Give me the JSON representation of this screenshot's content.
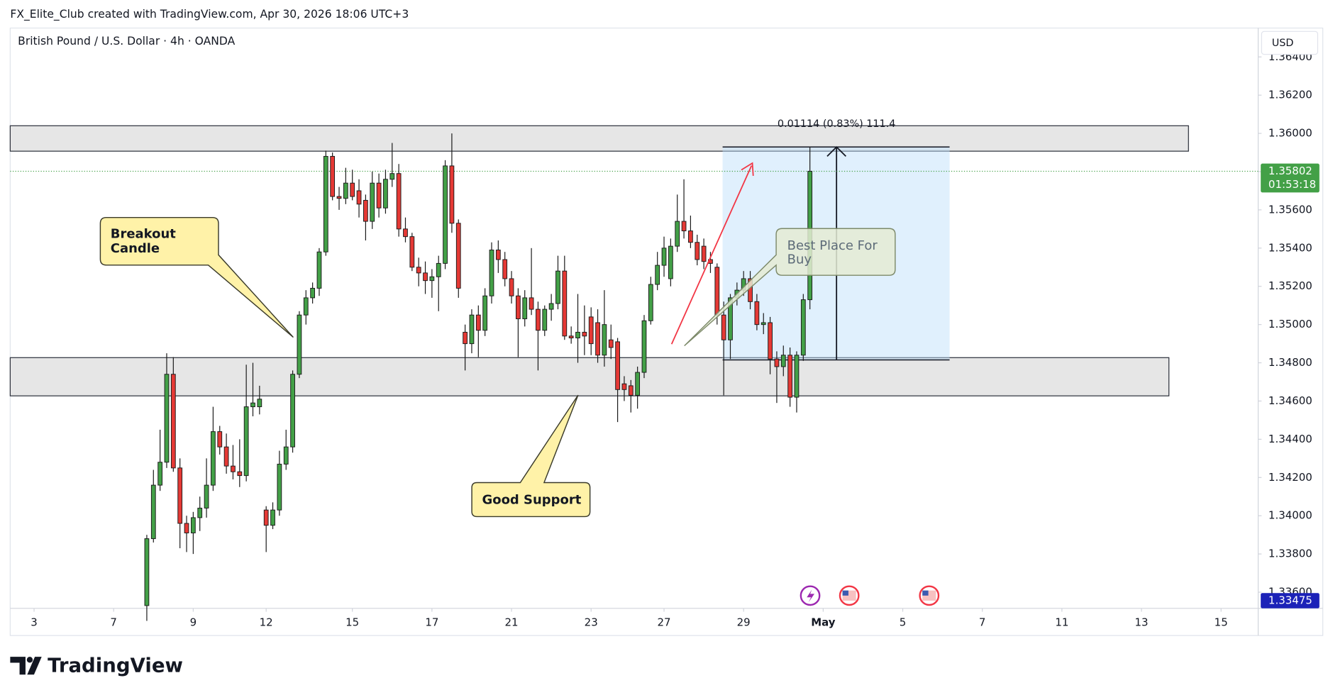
{
  "header": {
    "credit": "FX_Elite_Club created with TradingView.com, Apr 30, 2026 18:06 UTC+3",
    "symbol": "British Pound / U.S. Dollar · 4h · OANDA",
    "currency": "USD"
  },
  "chart_data": {
    "type": "candlestick",
    "x": [
      17,
      18,
      19,
      20,
      21,
      22,
      23,
      24,
      25,
      26,
      27,
      28,
      29,
      30,
      31,
      32,
      33,
      34,
      35,
      36,
      37,
      38,
      39,
      40,
      41,
      42,
      43,
      44,
      45,
      46,
      47,
      48,
      49,
      50,
      51,
      52,
      53,
      54,
      55,
      56,
      57,
      58,
      59,
      60,
      61,
      62,
      63,
      64,
      65,
      66,
      67,
      68,
      69,
      70,
      71,
      72,
      73,
      74,
      75,
      76,
      77,
      78,
      79,
      80,
      81,
      82,
      83,
      84,
      85,
      86,
      87,
      88,
      89,
      90,
      91,
      92,
      93,
      94,
      95,
      96,
      97,
      98,
      99,
      100,
      101,
      102,
      103,
      104,
      105,
      106,
      107,
      108,
      109,
      110,
      111,
      112,
      113,
      114,
      115,
      116,
      117
    ],
    "open": [
      1.3353,
      1.3388,
      1.3416,
      1.3428,
      1.3474,
      1.3425,
      1.3396,
      1.3391,
      1.3399,
      1.3404,
      1.3416,
      1.3444,
      1.3436,
      1.3426,
      1.3423,
      1.3421,
      1.3457,
      1.3457,
      1.3403,
      1.3395,
      1.3403,
      1.3427,
      1.3436,
      1.3474,
      1.3505,
      1.3514,
      1.3519,
      1.3538,
      1.3588,
      1.3567,
      1.3566,
      1.3574,
      1.357,
      1.3565,
      1.3554,
      1.3574,
      1.3561,
      1.3576,
      1.3579,
      1.355,
      1.3546,
      1.353,
      1.3527,
      1.3523,
      1.3525,
      1.3532,
      1.3583,
      1.3553,
      1.3496,
      1.349,
      1.3505,
      1.3497,
      1.3515,
      1.3539,
      1.3534,
      1.3524,
      1.3515,
      1.3503,
      1.3514,
      1.3508,
      1.3497,
      1.3508,
      1.3511,
      1.3528,
      1.3494,
      1.3493,
      1.3496,
      1.3504,
      1.3501,
      1.3484,
      1.3492,
      1.3491,
      1.3469,
      1.3468,
      1.3463,
      1.3475,
      1.3502,
      1.3521,
      1.3531,
      1.3524,
      1.3541,
      1.3554,
      1.3549,
      1.3543,
      1.3541,
      1.3534,
      1.353,
      1.3505,
      1.3492,
      1.3514,
      1.3518,
      1.3524,
      1.3512,
      1.35,
      1.3501,
      1.3482,
      1.3478,
      1.3484,
      1.3462,
      1.3484,
      1.3513
    ],
    "high": [
      1.339,
      1.3424,
      1.3445,
      1.3485,
      1.3483,
      1.343,
      1.34,
      1.3402,
      1.341,
      1.343,
      1.3457,
      1.3447,
      1.3443,
      1.3437,
      1.344,
      1.3479,
      1.348,
      1.3468,
      1.3405,
      1.3407,
      1.3434,
      1.3445,
      1.3476,
      1.3507,
      1.3518,
      1.3522,
      1.354,
      1.3591,
      1.359,
      1.3572,
      1.3582,
      1.3581,
      1.3576,
      1.3568,
      1.358,
      1.3579,
      1.3581,
      1.3595,
      1.3584,
      1.3556,
      1.3548,
      1.3535,
      1.3533,
      1.3529,
      1.3536,
      1.3586,
      1.36,
      1.3555,
      1.35,
      1.3508,
      1.351,
      1.3519,
      1.3543,
      1.3544,
      1.3538,
      1.3528,
      1.3519,
      1.3518,
      1.354,
      1.3512,
      1.351,
      1.3516,
      1.3536,
      1.3536,
      1.3499,
      1.3516,
      1.351,
      1.3509,
      1.3508,
      1.3518,
      1.35,
      1.3493,
      1.3473,
      1.3471,
      1.3478,
      1.3505,
      1.3525,
      1.3538,
      1.3546,
      1.3545,
      1.3568,
      1.3576,
      1.3557,
      1.3547,
      1.3545,
      1.3538,
      1.3532,
      1.3512,
      1.3516,
      1.3522,
      1.3528,
      1.3528,
      1.3516,
      1.3506,
      1.3504,
      1.3486,
      1.3489,
      1.3488,
      1.3486,
      1.3516,
      1.3593
    ],
    "low": [
      1.3345,
      1.3386,
      1.3413,
      1.3425,
      1.3423,
      1.3383,
      1.3381,
      1.338,
      1.3392,
      1.3399,
      1.3413,
      1.3432,
      1.3422,
      1.3419,
      1.3415,
      1.3418,
      1.3452,
      1.3453,
      1.3381,
      1.3393,
      1.34,
      1.3424,
      1.3433,
      1.3472,
      1.35,
      1.3511,
      1.3515,
      1.3536,
      1.3565,
      1.356,
      1.3563,
      1.3565,
      1.3556,
      1.3544,
      1.355,
      1.3556,
      1.3558,
      1.3572,
      1.3546,
      1.3543,
      1.3528,
      1.352,
      1.3516,
      1.3514,
      1.3507,
      1.3529,
      1.3548,
      1.3514,
      1.3476,
      1.3485,
      1.3483,
      1.3494,
      1.3511,
      1.3527,
      1.352,
      1.3511,
      1.3483,
      1.3499,
      1.3505,
      1.3476,
      1.3494,
      1.3502,
      1.3508,
      1.3492,
      1.349,
      1.348,
      1.3484,
      1.3484,
      1.348,
      1.3478,
      1.3482,
      1.3449,
      1.346,
      1.3454,
      1.3456,
      1.3472,
      1.35,
      1.3518,
      1.3525,
      1.352,
      1.3538,
      1.3545,
      1.354,
      1.3531,
      1.3529,
      1.3527,
      1.35,
      1.3463,
      1.3482,
      1.351,
      1.3515,
      1.3508,
      1.3497,
      1.3495,
      1.3474,
      1.3459,
      1.3473,
      1.3457,
      1.3454,
      1.3481,
      1.3508
    ],
    "close": [
      1.3388,
      1.3416,
      1.3428,
      1.3474,
      1.3425,
      1.3396,
      1.3391,
      1.3399,
      1.3404,
      1.3416,
      1.3444,
      1.3436,
      1.3426,
      1.3423,
      1.3421,
      1.3457,
      1.3459,
      1.3461,
      1.3395,
      1.3403,
      1.3427,
      1.3436,
      1.3474,
      1.3505,
      1.3514,
      1.3519,
      1.3538,
      1.3588,
      1.3567,
      1.3566,
      1.3574,
      1.3567,
      1.3563,
      1.3554,
      1.3574,
      1.3561,
      1.3576,
      1.3579,
      1.355,
      1.3546,
      1.353,
      1.3527,
      1.3523,
      1.3525,
      1.3532,
      1.3583,
      1.3553,
      1.3519,
      1.349,
      1.3505,
      1.3497,
      1.3515,
      1.3539,
      1.3534,
      1.3524,
      1.3515,
      1.3503,
      1.3514,
      1.3508,
      1.3497,
      1.3508,
      1.3511,
      1.3528,
      1.3494,
      1.3493,
      1.3496,
      1.3494,
      1.349,
      1.3484,
      1.35,
      1.3488,
      1.3466,
      1.3466,
      1.3463,
      1.3475,
      1.3502,
      1.3521,
      1.3531,
      1.354,
      1.3541,
      1.3554,
      1.3549,
      1.3543,
      1.3534,
      1.3533,
      1.3532,
      1.3505,
      1.3492,
      1.3514,
      1.3518,
      1.3524,
      1.3512,
      1.35,
      1.3501,
      1.3482,
      1.3478,
      1.3484,
      1.3462,
      1.3484,
      1.3513,
      1.35802
    ],
    "up_color": "#43a047",
    "down_color": "#e53935",
    "xlim": [
      -3.6,
      184.6
    ],
    "xticks": [
      {
        "value": 0,
        "label": "3"
      },
      {
        "value": 12,
        "label": "7"
      },
      {
        "value": 24,
        "label": "9"
      },
      {
        "value": 35,
        "label": "12"
      },
      {
        "value": 48,
        "label": "15"
      },
      {
        "value": 60,
        "label": "17"
      },
      {
        "value": 72,
        "label": "21"
      },
      {
        "value": 84,
        "label": "23"
      },
      {
        "value": 95,
        "label": "27"
      },
      {
        "value": 107,
        "label": "29"
      },
      {
        "value": 119,
        "label": "May"
      },
      {
        "value": 131,
        "label": "5"
      },
      {
        "value": 143,
        "label": "7"
      },
      {
        "value": 155,
        "label": "11"
      },
      {
        "value": 167,
        "label": "13"
      },
      {
        "value": 179,
        "label": "15"
      }
    ],
    "ylim": [
      1.335156,
      1.365511
    ],
    "yticks": [
      {
        "value": 1.336,
        "label": "1.33600"
      },
      {
        "value": 1.338,
        "label": "1.33800"
      },
      {
        "value": 1.34,
        "label": "1.34000"
      },
      {
        "value": 1.342,
        "label": "1.34200"
      },
      {
        "value": 1.344,
        "label": "1.34400"
      },
      {
        "value": 1.346,
        "label": "1.34600"
      },
      {
        "value": 1.348,
        "label": "1.34800"
      },
      {
        "value": 1.35,
        "label": "1.35000"
      },
      {
        "value": 1.352,
        "label": "1.35200"
      },
      {
        "value": 1.354,
        "label": "1.35400"
      },
      {
        "value": 1.356,
        "label": "1.35600"
      },
      {
        "value": 1.358,
        "label": "1.35800"
      },
      {
        "value": 1.36,
        "label": "1.36000"
      },
      {
        "value": 1.362,
        "label": "1.36200"
      },
      {
        "value": 1.364,
        "label": "1.36400"
      }
    ],
    "grid": false,
    "last_price": {
      "value": 1.35802,
      "label": "1.35802"
    },
    "countdown": "01:53:18",
    "crosshair_price": {
      "value": 1.33475,
      "label": "1.33475"
    },
    "zones": [
      {
        "top": 1.3604,
        "bottom": 1.35907
      },
      {
        "top": 1.34827,
        "bottom": 1.34627
      }
    ],
    "measure": {
      "from": 1.34815,
      "to": 1.35929,
      "label": "0.01114 (0.83%) 111.4"
    },
    "annotations": [
      "Breakout Candle",
      "Good Support",
      "Best Place For Buy"
    ]
  },
  "footer": {
    "brand": "TradingView"
  }
}
